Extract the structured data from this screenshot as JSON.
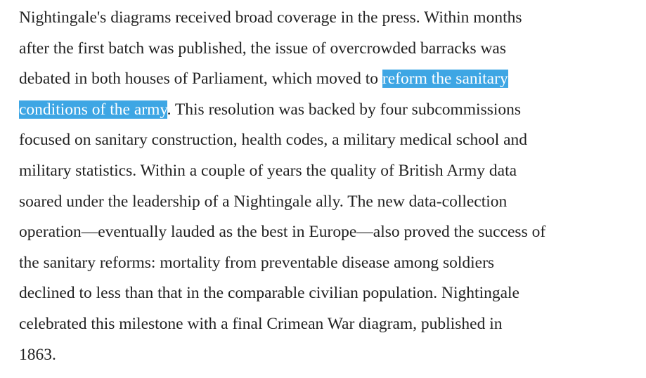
{
  "article": {
    "lines": [
      "Nightingale's diagrams received broad coverage in the press. Within months",
      "after the first batch was published, the issue of overcrowded barracks was",
      "debated in both houses of Parliament, which moved to ",
      "reform the sanitary ",
      "conditions of the army",
      ". This resolution was backed by four subcommissions",
      "focused on sanitary construction, health codes, a military medical school and",
      "military statistics. Within a couple of years the quality of British Army data",
      "soared under the leadership of a Nightingale ally. The new data-collection",
      "operation—eventually lauded as the best in Europe—also proved the success of",
      "the sanitary reforms: mortality from preventable disease among soldiers",
      "declined to less than that in the comparable civilian population. Nightingale",
      "celebrated this milestone with a final Crimean War diagram, published in",
      "1863."
    ],
    "selection_color": "#3ea6e4"
  }
}
